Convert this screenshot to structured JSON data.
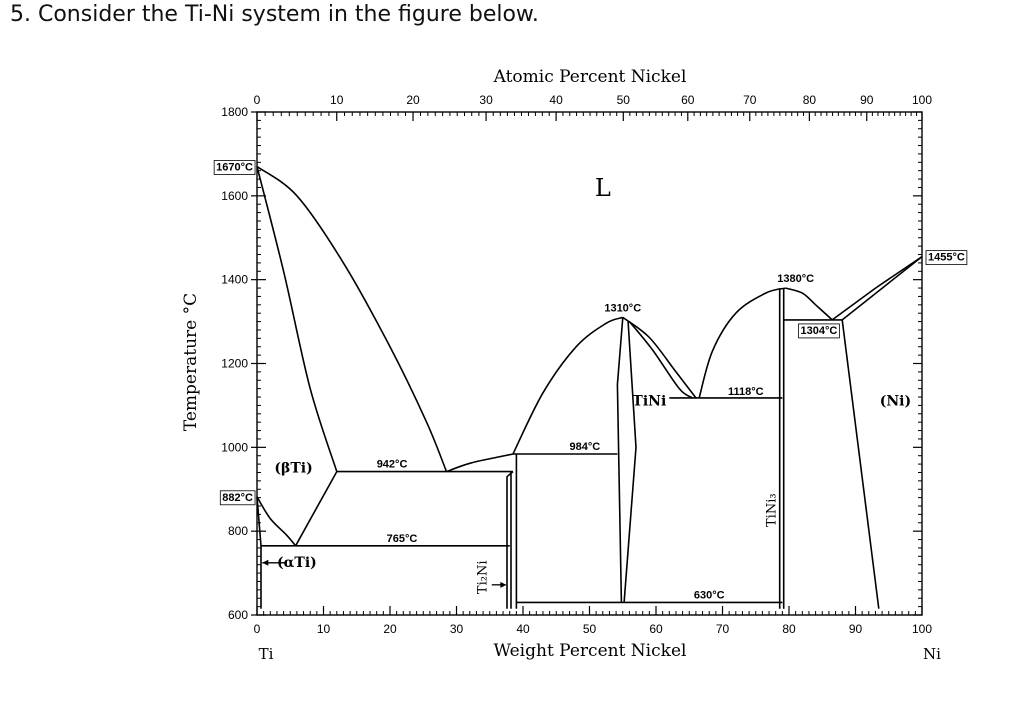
{
  "question": {
    "text": "5. Consider the Ti-Ni system in the figure below."
  },
  "chart_data": {
    "type": "phase-diagram",
    "top_axis": {
      "label": "Atomic Percent Nickel",
      "ticks": [
        "0",
        "10",
        "20",
        "30",
        "40",
        "50",
        "60",
        "70",
        "80",
        "90",
        "100"
      ]
    },
    "bottom_axis": {
      "label": "Weight Percent Nickel",
      "ticks": [
        "0",
        "10",
        "20",
        "30",
        "40",
        "50",
        "60",
        "70",
        "80",
        "90",
        "100"
      ],
      "end_labels": {
        "left": "Ti",
        "right": "Ni"
      },
      "range": [
        0,
        100
      ]
    },
    "y_axis": {
      "label": "Temperature °C",
      "ticks": [
        "1800",
        "1600",
        "1400",
        "1200",
        "1000",
        "800",
        "600"
      ],
      "range": [
        600,
        1800
      ]
    },
    "temperature_labels": [
      {
        "text": "1670°C",
        "wt": 0,
        "t": 1670
      },
      {
        "text": "882°C",
        "wt": 0,
        "t": 882
      },
      {
        "text": "942°C",
        "wt": 18,
        "t": 942
      },
      {
        "text": "765°C",
        "wt": 19.5,
        "t": 765
      },
      {
        "text": "984°C",
        "wt": 47,
        "t": 984
      },
      {
        "text": "1310°C",
        "wt": 55,
        "t": 1310
      },
      {
        "text": "1380°C",
        "wt": 81,
        "t": 1380
      },
      {
        "text": "1304°C",
        "wt": 84.5,
        "t": 1304
      },
      {
        "text": "1118°C",
        "wt": 73.5,
        "t": 1118
      },
      {
        "text": "630°C",
        "wt": 68,
        "t": 630
      },
      {
        "text": "1455°C",
        "wt": 100,
        "t": 1455
      }
    ],
    "phase_labels": [
      {
        "text": "L",
        "wt": 52,
        "t": 1600
      },
      {
        "text": "(βTi)",
        "wt": 5.5,
        "t": 940
      },
      {
        "text": "(αTi)",
        "wt": 6,
        "t": 715
      },
      {
        "text": "Ti₂Ni",
        "wt": 34.5,
        "t": 690
      },
      {
        "text": "TiNi",
        "wt": 59,
        "t": 1100
      },
      {
        "text": "TiNi₃",
        "wt": 78,
        "t": 850
      },
      {
        "text": "(Ni)",
        "wt": 96,
        "t": 1100
      }
    ]
  }
}
